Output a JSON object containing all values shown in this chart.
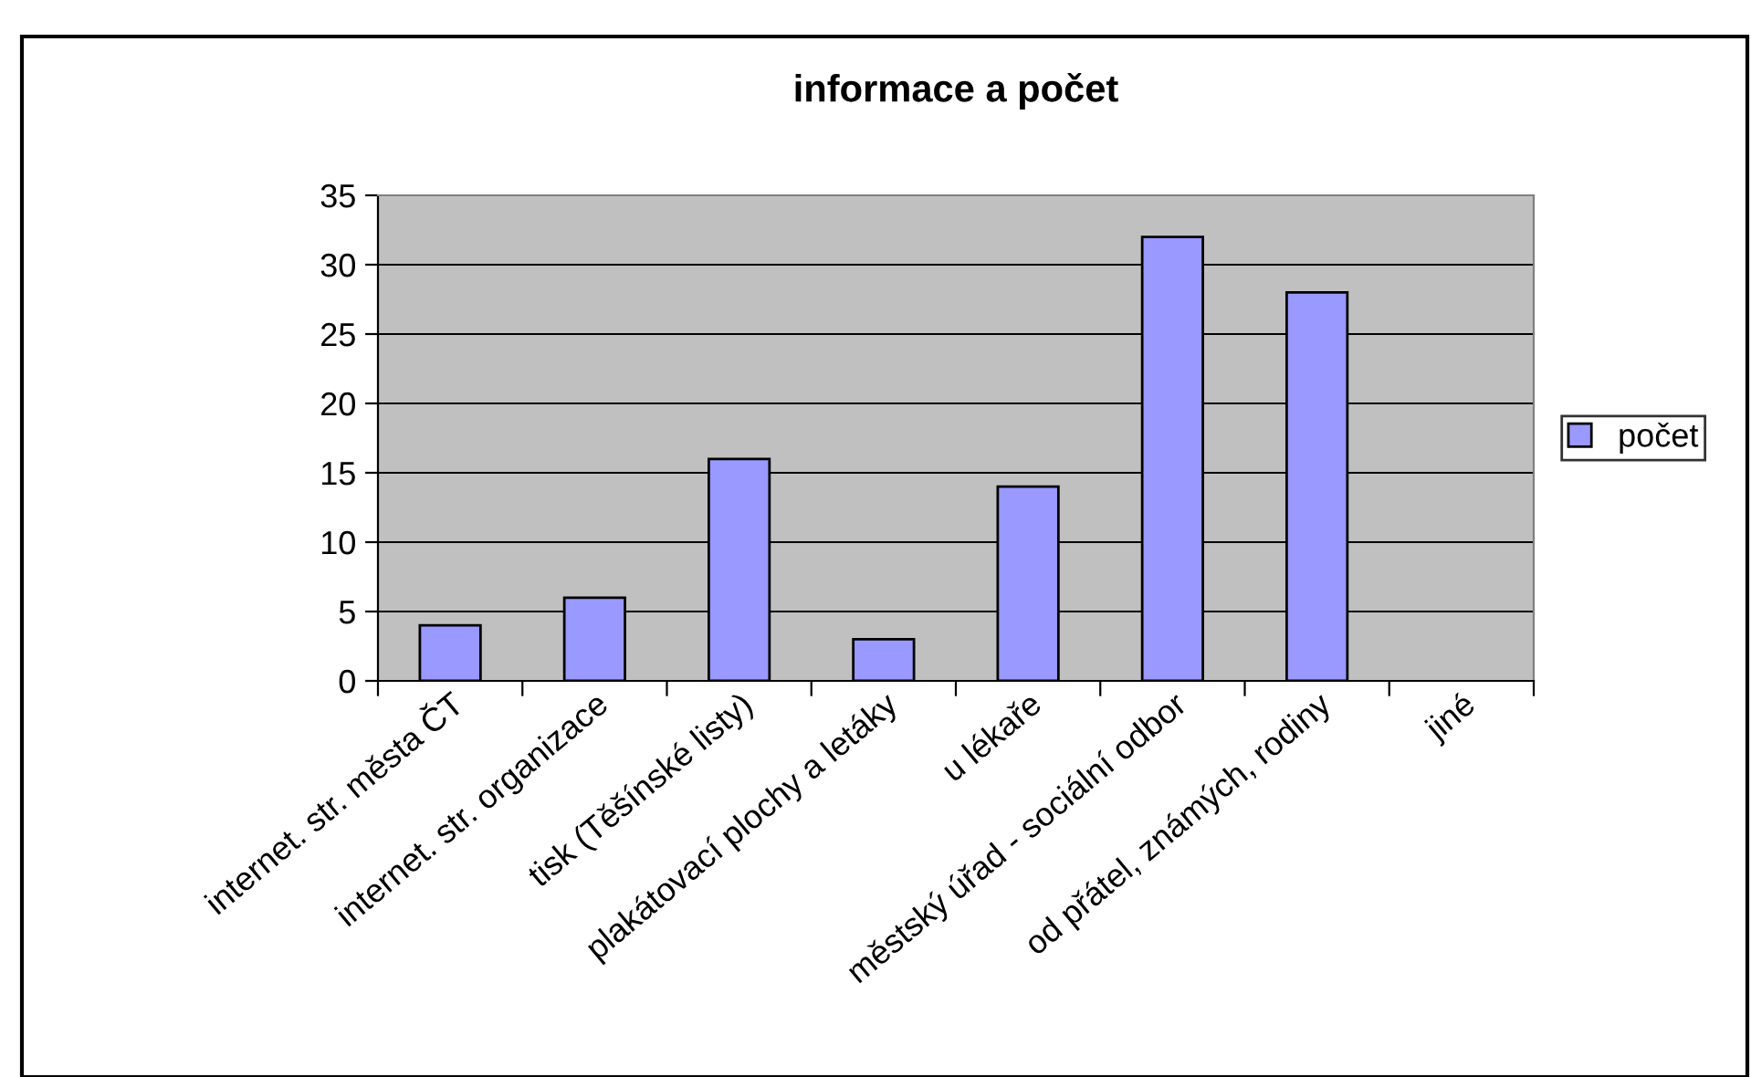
{
  "chart_data": {
    "type": "bar",
    "title": "informace a počet",
    "categories": [
      "internet. str. města ČT",
      "internet. str. organizace",
      "tisk (Těšínské listy)",
      "plakátovací plochy a letáky",
      "u lékaře",
      "městský úřad - sociální odbor",
      "od přátel, známých, rodiny",
      "jiné"
    ],
    "series": [
      {
        "name": "počet",
        "color": "#9999ff",
        "values": [
          4,
          6,
          16,
          3,
          14,
          32,
          28,
          null
        ]
      }
    ],
    "ylim": [
      0,
      35
    ],
    "yticks": [
      0,
      5,
      10,
      15,
      20,
      25,
      30,
      35
    ],
    "grid": "y",
    "legend": "right"
  }
}
